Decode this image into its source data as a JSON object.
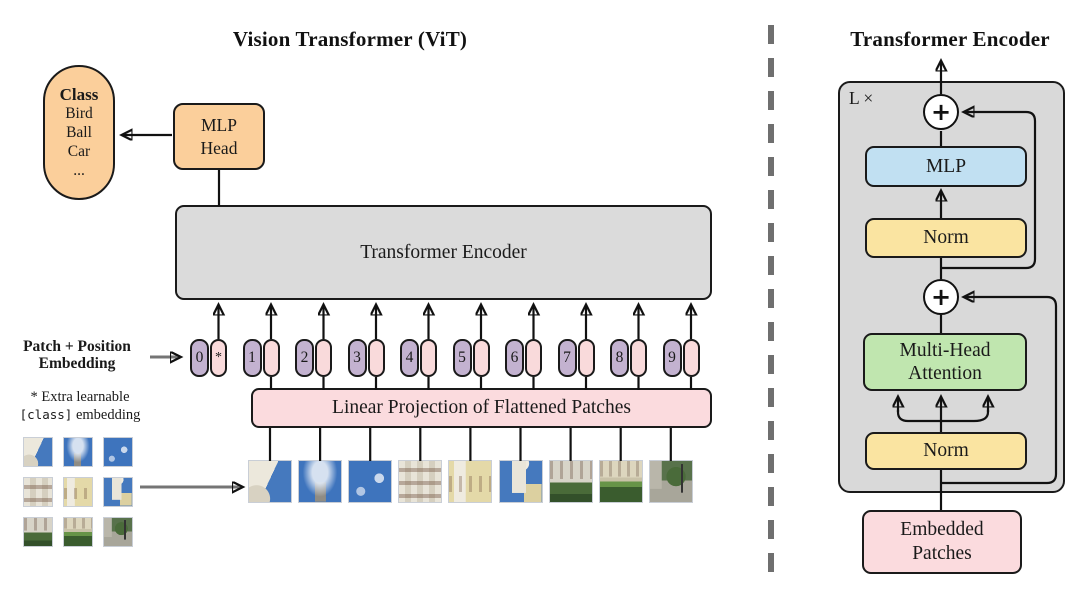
{
  "left": {
    "title": "Vision Transformer (ViT)",
    "class_pill": {
      "header": "Class",
      "classes": [
        "Bird",
        "Ball",
        "Car",
        "..."
      ]
    },
    "mlp_head": {
      "line1": "MLP",
      "line2": "Head"
    },
    "encoder_label": "Transformer Encoder",
    "patch_position_label": {
      "line1": "Patch + Position",
      "line2": "Embedding"
    },
    "footnote": {
      "line1": "* Extra learnable",
      "code": "[class]",
      "rest": " embedding"
    },
    "linear_projection_label": "Linear Projection of Flattened Patches",
    "tokens": [
      "0",
      "1",
      "2",
      "3",
      "4",
      "5",
      "6",
      "7",
      "8",
      "9"
    ],
    "class_token_star": "*"
  },
  "right": {
    "title": "Transformer Encoder",
    "repeat_label": "L ×",
    "plus": "+",
    "mlp_label": "MLP",
    "norm_label_top": "Norm",
    "attention": {
      "line1": "Multi-Head",
      "line2": "Attention"
    },
    "norm_label_bottom": "Norm",
    "embedded_patches": {
      "line1": "Embedded",
      "line2": "Patches"
    }
  },
  "colors": {
    "orange": "#FBCF9B",
    "pink_box": "#FBDBDE",
    "purple_token": "#C3B2D0",
    "pink_token": "#F9DADB",
    "gray_box": "#DBDBDB",
    "panel_gray": "#D9D9D9",
    "blue_mlp": "#C1E0F2",
    "yellow_norm": "#FAE4A1",
    "green_attention": "#C0E6AF",
    "line_black": "#111111",
    "gray_arrow": "#757575"
  }
}
